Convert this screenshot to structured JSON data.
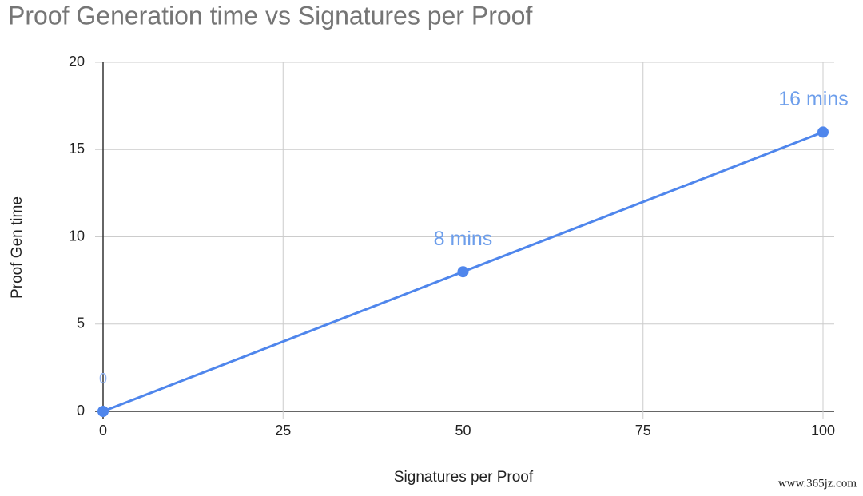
{
  "chart_data": {
    "type": "line",
    "title": "Proof Generation time vs Signatures per Proof",
    "x_label": "Signatures per Proof",
    "y_label": "Proof Gen time",
    "x": [
      0,
      50,
      100
    ],
    "series": [
      {
        "name": "Proof Gen time",
        "color": "#4f86ec",
        "values": [
          0,
          8,
          16
        ],
        "value_labels": [
          "0",
          "8 mins",
          "16 mins"
        ]
      }
    ],
    "xlim": [
      0,
      100
    ],
    "xticks": [
      0,
      25,
      50,
      75,
      100
    ],
    "ylim": [
      0,
      20
    ],
    "yticks": [
      0,
      5,
      10,
      15,
      20
    ],
    "grid": true,
    "watermark": "www.365jz.com"
  }
}
